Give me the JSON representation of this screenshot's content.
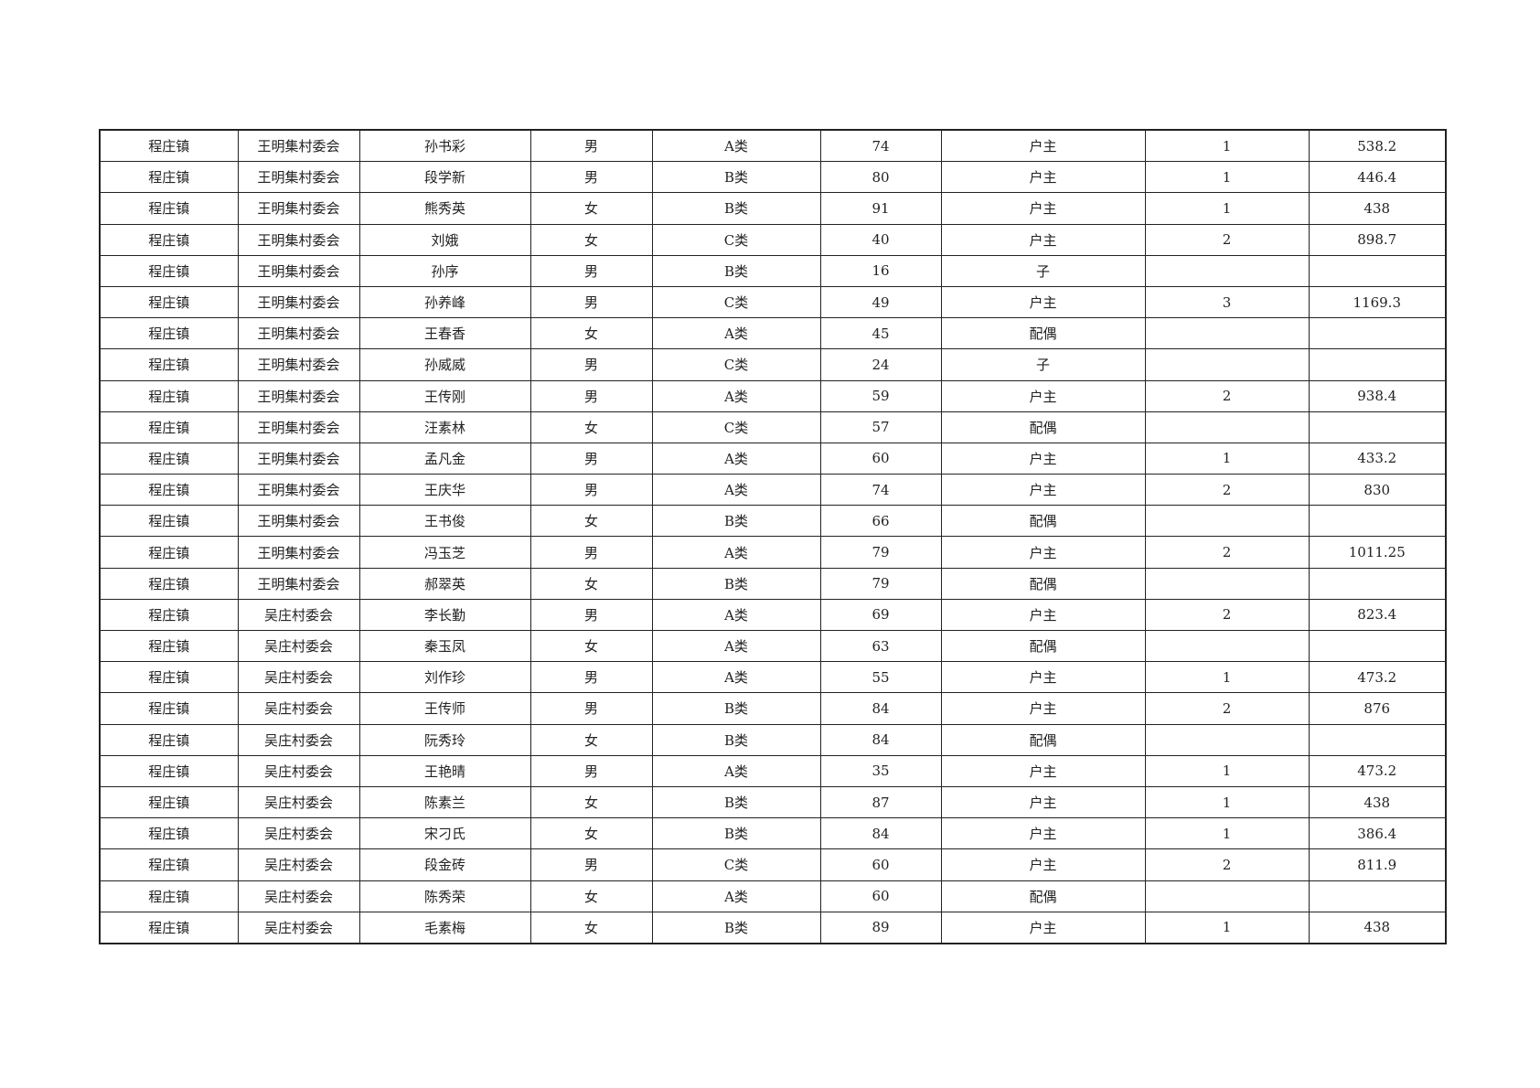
{
  "table": {
    "rows": [
      [
        "程庄镇",
        "王明集村委会",
        "孙书彩",
        "男",
        "A类",
        "74",
        "户主",
        "1",
        "538.2"
      ],
      [
        "程庄镇",
        "王明集村委会",
        "段学新",
        "男",
        "B类",
        "80",
        "户主",
        "1",
        "446.4"
      ],
      [
        "程庄镇",
        "王明集村委会",
        "熊秀英",
        "女",
        "B类",
        "91",
        "户主",
        "1",
        "438"
      ],
      [
        "程庄镇",
        "王明集村委会",
        "刘娥",
        "女",
        "C类",
        "40",
        "户主",
        "2",
        "898.7"
      ],
      [
        "程庄镇",
        "王明集村委会",
        "孙序",
        "男",
        "B类",
        "16",
        "子",
        "",
        ""
      ],
      [
        "程庄镇",
        "王明集村委会",
        "孙养峰",
        "男",
        "C类",
        "49",
        "户主",
        "3",
        "1169.3"
      ],
      [
        "程庄镇",
        "王明集村委会",
        "王春香",
        "女",
        "A类",
        "45",
        "配偶",
        "",
        ""
      ],
      [
        "程庄镇",
        "王明集村委会",
        "孙威威",
        "男",
        "C类",
        "24",
        "子",
        "",
        ""
      ],
      [
        "程庄镇",
        "王明集村委会",
        "王传刚",
        "男",
        "A类",
        "59",
        "户主",
        "2",
        "938.4"
      ],
      [
        "程庄镇",
        "王明集村委会",
        "汪素林",
        "女",
        "C类",
        "57",
        "配偶",
        "",
        ""
      ],
      [
        "程庄镇",
        "王明集村委会",
        "孟凡金",
        "男",
        "A类",
        "60",
        "户主",
        "1",
        "433.2"
      ],
      [
        "程庄镇",
        "王明集村委会",
        "王庆华",
        "男",
        "A类",
        "74",
        "户主",
        "2",
        "830"
      ],
      [
        "程庄镇",
        "王明集村委会",
        "王书俊",
        "女",
        "B类",
        "66",
        "配偶",
        "",
        ""
      ],
      [
        "程庄镇",
        "王明集村委会",
        "冯玉芝",
        "男",
        "A类",
        "79",
        "户主",
        "2",
        "1011.25"
      ],
      [
        "程庄镇",
        "王明集村委会",
        "郝翠英",
        "女",
        "B类",
        "79",
        "配偶",
        "",
        ""
      ],
      [
        "程庄镇",
        "吴庄村委会",
        "李长勤",
        "男",
        "A类",
        "69",
        "户主",
        "2",
        "823.4"
      ],
      [
        "程庄镇",
        "吴庄村委会",
        "秦玉凤",
        "女",
        "A类",
        "63",
        "配偶",
        "",
        ""
      ],
      [
        "程庄镇",
        "吴庄村委会",
        "刘作珍",
        "男",
        "A类",
        "55",
        "户主",
        "1",
        "473.2"
      ],
      [
        "程庄镇",
        "吴庄村委会",
        "王传师",
        "男",
        "B类",
        "84",
        "户主",
        "2",
        "876"
      ],
      [
        "程庄镇",
        "吴庄村委会",
        "阮秀玲",
        "女",
        "B类",
        "84",
        "配偶",
        "",
        ""
      ],
      [
        "程庄镇",
        "吴庄村委会",
        "王艳晴",
        "男",
        "A类",
        "35",
        "户主",
        "1",
        "473.2"
      ],
      [
        "程庄镇",
        "吴庄村委会",
        "陈素兰",
        "女",
        "B类",
        "87",
        "户主",
        "1",
        "438"
      ],
      [
        "程庄镇",
        "吴庄村委会",
        "宋刁氏",
        "女",
        "B类",
        "84",
        "户主",
        "1",
        "386.4"
      ],
      [
        "程庄镇",
        "吴庄村委会",
        "段金砖",
        "男",
        "C类",
        "60",
        "户主",
        "2",
        "811.9"
      ],
      [
        "程庄镇",
        "吴庄村委会",
        "陈秀荣",
        "女",
        "A类",
        "60",
        "配偶",
        "",
        ""
      ],
      [
        "程庄镇",
        "吴庄村委会",
        "毛素梅",
        "女",
        "B类",
        "89",
        "户主",
        "1",
        "438"
      ]
    ]
  }
}
